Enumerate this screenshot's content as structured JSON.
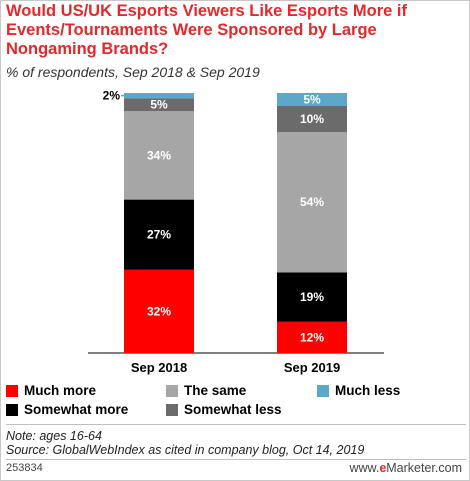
{
  "title": "Would US/UK Esports Viewers Like Esports More if Events/Tournaments Were Sponsored by Large Nongaming Brands?",
  "subtitle": "% of respondents, Sep 2018 & Sep 2019",
  "chart_data": {
    "type": "bar",
    "stacked": true,
    "categories": [
      "Sep 2018",
      "Sep 2019"
    ],
    "ylim": [
      0,
      100
    ],
    "legend_position": "bottom",
    "series": [
      {
        "name": "Much more",
        "color": "#ff0000",
        "text_color": "#ffffff",
        "values": [
          32,
          12
        ],
        "labels": [
          "32%",
          "12%"
        ]
      },
      {
        "name": "Somewhat more",
        "color": "#000000",
        "text_color": "#ffffff",
        "values": [
          27,
          19
        ],
        "labels": [
          "27%",
          "19%"
        ]
      },
      {
        "name": "The same",
        "color": "#a6a6a6",
        "text_color": "#ffffff",
        "values": [
          34,
          54
        ],
        "labels": [
          "34%",
          "54%"
        ]
      },
      {
        "name": "Somewhat less",
        "color": "#6b6b6b",
        "text_color": "#ffffff",
        "values": [
          5,
          10
        ],
        "labels": [
          "5%",
          "10%"
        ]
      },
      {
        "name": "Much less",
        "color": "#5ba8c8",
        "text_color": "#ffffff",
        "values": [
          2,
          5
        ],
        "labels": [
          "2%",
          "5%"
        ]
      }
    ]
  },
  "legend": {
    "much_more": "Much more",
    "the_same": "The same",
    "much_less": "Much less",
    "somewhat_more": "Somewhat more",
    "somewhat_less": "Somewhat less"
  },
  "notes": {
    "note": "Note: ages 16-64",
    "source": "Source: GlobalWebIndex as cited in company blog, Oct 14, 2019"
  },
  "footer": {
    "chart_id": "253834",
    "brand_prefix": "www.",
    "brand_e": "e",
    "brand_name": "Marketer",
    "brand_suffix": ".com"
  }
}
